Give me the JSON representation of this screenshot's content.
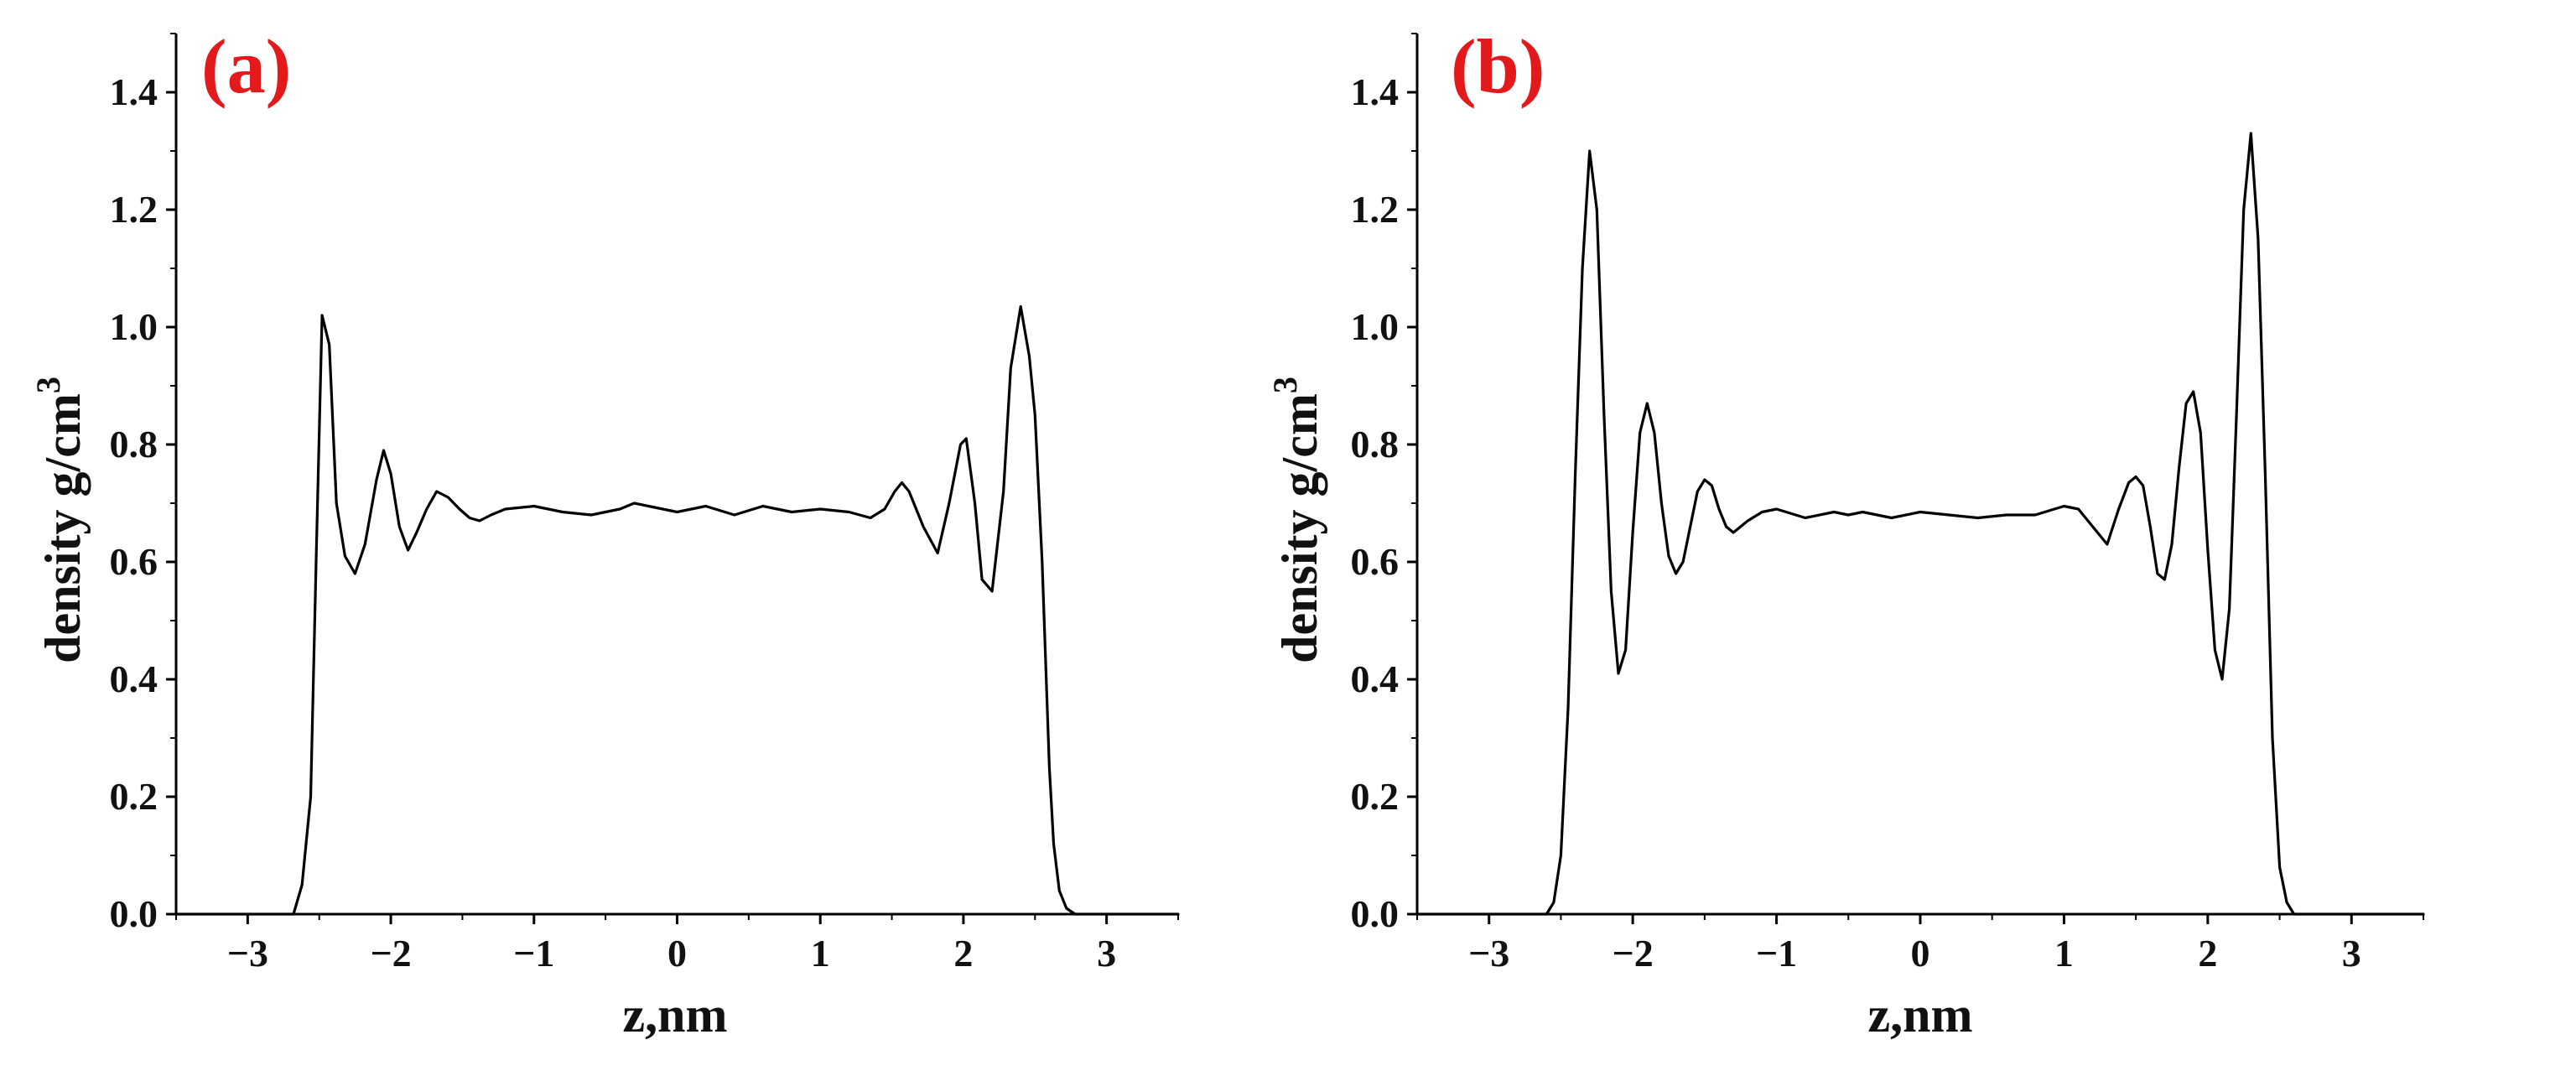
{
  "colors": {
    "line": "#000000",
    "axis": "#000000",
    "panel_label": "#e31a1c"
  },
  "chart_data": [
    {
      "type": "line",
      "panel_label": "(a)",
      "xlabel": "z,nm",
      "ylabel_main": "density g/cm",
      "ylabel_sup": "3",
      "xlim": [
        -3.5,
        3.5
      ],
      "ylim": [
        0,
        1.5
      ],
      "xticks": [
        -3,
        -2,
        -1,
        0,
        1,
        2,
        3
      ],
      "xtick_labels": [
        "−3",
        "−2",
        "−1",
        "0",
        "1",
        "2",
        "3"
      ],
      "yticks": [
        0.0,
        0.2,
        0.4,
        0.6,
        0.8,
        1.0,
        1.2,
        1.4
      ],
      "ytick_labels": [
        "0.0",
        "0.2",
        "0.4",
        "0.6",
        "0.8",
        "1.0",
        "1.2",
        "1.4"
      ],
      "grid": false,
      "series": [
        {
          "x": [
            -3.5,
            -2.68,
            -2.62,
            -2.56,
            -2.52,
            -2.48,
            -2.43,
            -2.38,
            -2.32,
            -2.25,
            -2.18,
            -2.1,
            -2.05,
            -2.0,
            -1.94,
            -1.88,
            -1.82,
            -1.75,
            -1.68,
            -1.6,
            -1.52,
            -1.45,
            -1.38,
            -1.3,
            -1.2,
            -1.0,
            -0.8,
            -0.6,
            -0.4,
            -0.3,
            -0.2,
            0.0,
            0.2,
            0.4,
            0.6,
            0.8,
            1.0,
            1.2,
            1.35,
            1.45,
            1.52,
            1.57,
            1.62,
            1.72,
            1.82,
            1.9,
            1.98,
            2.02,
            2.08,
            2.13,
            2.2,
            2.28,
            2.33,
            2.4,
            2.46,
            2.5,
            2.55,
            2.6,
            2.63,
            2.67,
            2.72,
            2.78,
            3.5
          ],
          "y": [
            0.0,
            0.0,
            0.05,
            0.2,
            0.62,
            1.02,
            0.97,
            0.7,
            0.61,
            0.58,
            0.63,
            0.74,
            0.79,
            0.75,
            0.66,
            0.62,
            0.65,
            0.69,
            0.72,
            0.71,
            0.69,
            0.675,
            0.67,
            0.68,
            0.69,
            0.695,
            0.685,
            0.68,
            0.69,
            0.7,
            0.695,
            0.685,
            0.695,
            0.68,
            0.695,
            0.685,
            0.69,
            0.685,
            0.675,
            0.69,
            0.72,
            0.735,
            0.72,
            0.66,
            0.615,
            0.7,
            0.8,
            0.81,
            0.7,
            0.57,
            0.55,
            0.72,
            0.93,
            1.035,
            0.95,
            0.85,
            0.6,
            0.25,
            0.12,
            0.04,
            0.01,
            0.0,
            0.0
          ]
        }
      ]
    },
    {
      "type": "line",
      "panel_label": "(b)",
      "xlabel": "z,nm",
      "ylabel_main": "density g/cm",
      "ylabel_sup": "3",
      "xlim": [
        -3.5,
        3.5
      ],
      "ylim": [
        0,
        1.5
      ],
      "xticks": [
        -3,
        -2,
        -1,
        0,
        1,
        2,
        3
      ],
      "xtick_labels": [
        "−3",
        "−2",
        "−1",
        "0",
        "1",
        "2",
        "3"
      ],
      "yticks": [
        0.0,
        0.2,
        0.4,
        0.6,
        0.8,
        1.0,
        1.2,
        1.4
      ],
      "ytick_labels": [
        "0.0",
        "0.2",
        "0.4",
        "0.6",
        "0.8",
        "1.0",
        "1.2",
        "1.4"
      ],
      "grid": false,
      "series": [
        {
          "x": [
            -3.5,
            -2.6,
            -2.55,
            -2.5,
            -2.45,
            -2.4,
            -2.35,
            -2.3,
            -2.25,
            -2.2,
            -2.15,
            -2.1,
            -2.05,
            -2.0,
            -1.95,
            -1.9,
            -1.85,
            -1.8,
            -1.75,
            -1.7,
            -1.65,
            -1.6,
            -1.55,
            -1.5,
            -1.45,
            -1.4,
            -1.35,
            -1.3,
            -1.2,
            -1.1,
            -1.0,
            -0.8,
            -0.6,
            -0.5,
            -0.4,
            -0.2,
            0.0,
            0.2,
            0.4,
            0.6,
            0.8,
            1.0,
            1.1,
            1.2,
            1.3,
            1.38,
            1.45,
            1.5,
            1.55,
            1.6,
            1.65,
            1.7,
            1.75,
            1.8,
            1.85,
            1.9,
            1.95,
            2.0,
            2.05,
            2.1,
            2.15,
            2.2,
            2.25,
            2.3,
            2.35,
            2.4,
            2.45,
            2.5,
            2.55,
            2.6,
            2.65,
            2.7,
            3.5
          ],
          "y": [
            0.0,
            0.0,
            0.02,
            0.1,
            0.35,
            0.75,
            1.1,
            1.3,
            1.2,
            0.85,
            0.55,
            0.41,
            0.45,
            0.65,
            0.82,
            0.87,
            0.82,
            0.7,
            0.61,
            0.58,
            0.6,
            0.66,
            0.72,
            0.74,
            0.73,
            0.69,
            0.66,
            0.65,
            0.67,
            0.685,
            0.69,
            0.675,
            0.685,
            0.68,
            0.685,
            0.675,
            0.685,
            0.68,
            0.675,
            0.68,
            0.68,
            0.695,
            0.69,
            0.66,
            0.63,
            0.69,
            0.735,
            0.745,
            0.73,
            0.66,
            0.58,
            0.57,
            0.63,
            0.76,
            0.87,
            0.89,
            0.82,
            0.62,
            0.45,
            0.4,
            0.52,
            0.85,
            1.2,
            1.33,
            1.15,
            0.75,
            0.3,
            0.08,
            0.02,
            0.0,
            0.0,
            0.0,
            0.0
          ]
        }
      ]
    }
  ]
}
